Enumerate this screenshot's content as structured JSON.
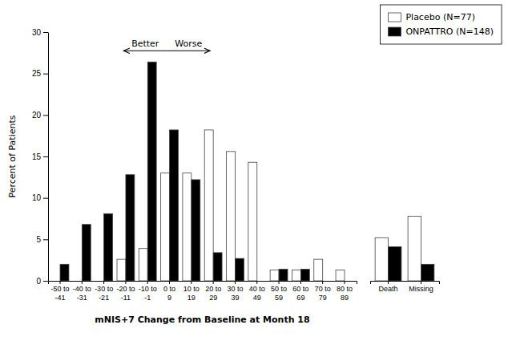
{
  "chart_data": [
    {
      "type": "bar",
      "categories": [
        "-50 to\n-41",
        "-40 to\n-31",
        "-30 to\n-21",
        "-20 to\n-11",
        "-10 to\n-1",
        "0 to\n9",
        "10 to\n19",
        "20 to\n29",
        "30 to\n39",
        "40 to\n49",
        "50 to\n59",
        "60 to\n69",
        "70 to\n79",
        "80 to\n89"
      ],
      "series": [
        {
          "name": "Placebo (N=77)",
          "color": "white",
          "values": [
            0,
            0,
            0,
            2.6,
            3.9,
            13.0,
            13.0,
            18.2,
            15.6,
            14.3,
            1.3,
            1.3,
            2.6,
            1.3
          ]
        },
        {
          "name": "ONPATTRO (N=148)",
          "color": "black",
          "values": [
            2.0,
            6.8,
            8.1,
            12.8,
            26.4,
            18.2,
            12.2,
            3.4,
            2.7,
            0,
            1.4,
            1.4,
            0,
            0
          ]
        }
      ],
      "xlabel": "mNIS+7 Change from Baseline at Month 18",
      "ylabel": "Percent of Patients",
      "ylim": [
        0,
        30
      ],
      "yticks": [
        0,
        5,
        10,
        15,
        20,
        25,
        30
      ],
      "legend": "upper right",
      "annotations": [
        "Better",
        "Worse"
      ]
    },
    {
      "type": "bar",
      "categories": [
        "Death",
        "Missing"
      ],
      "series": [
        {
          "color": "white",
          "values": [
            5.2,
            7.8
          ]
        },
        {
          "color": "black",
          "values": [
            4.1,
            2.0
          ]
        }
      ],
      "ylim": [
        0,
        30
      ],
      "tick_labels": "x"
    }
  ]
}
